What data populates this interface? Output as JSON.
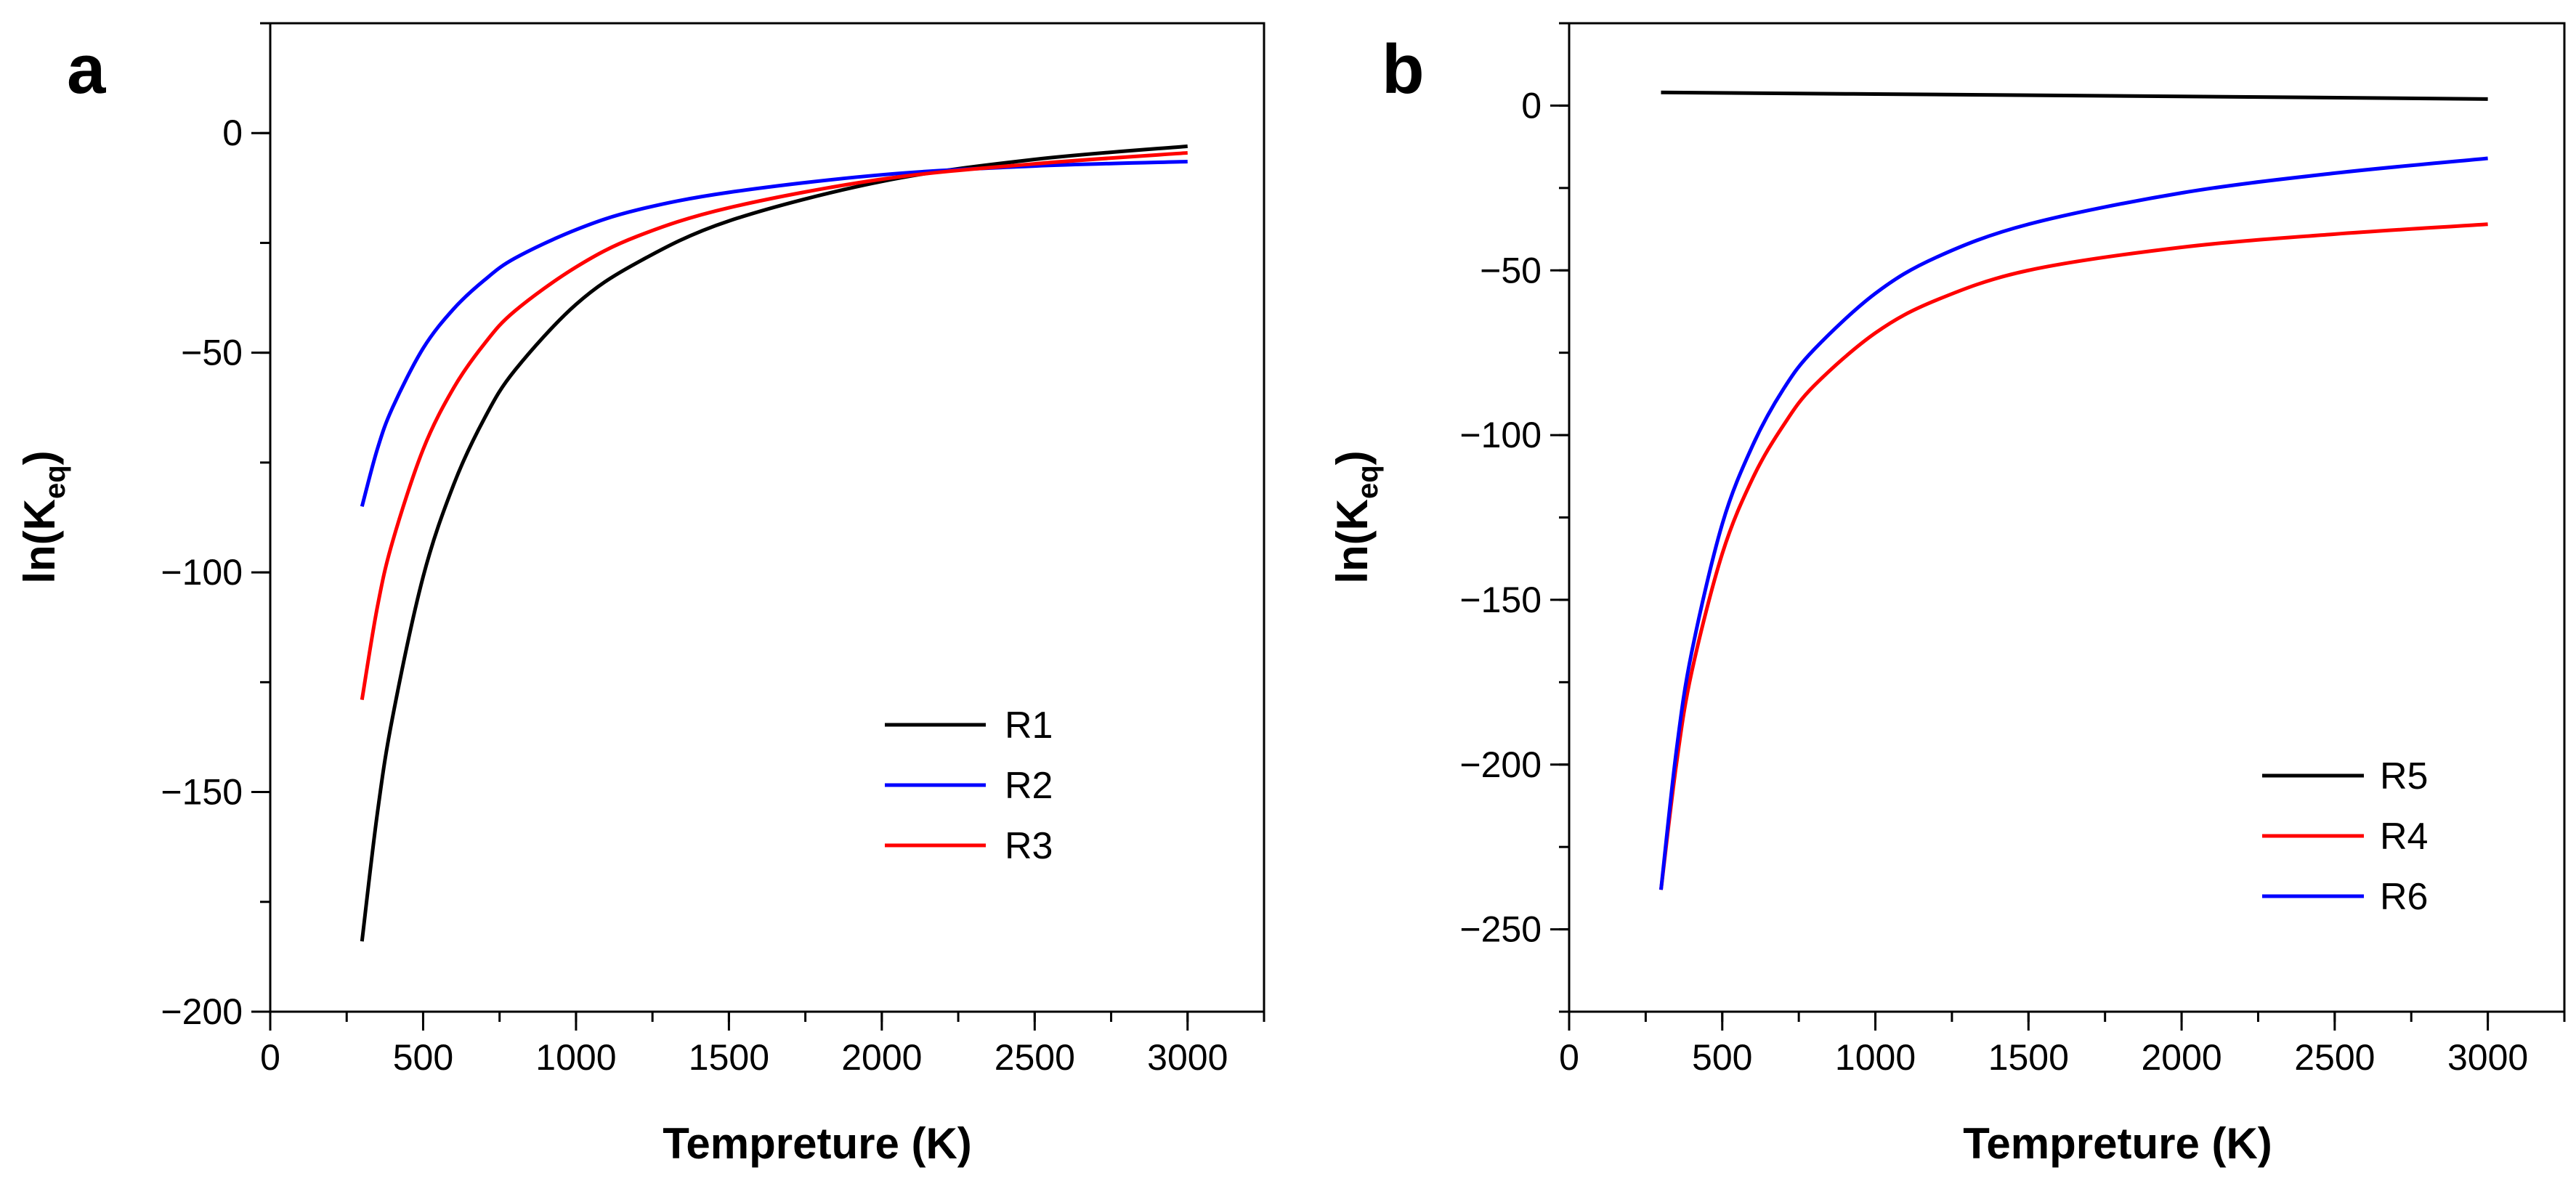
{
  "chart_data": [
    {
      "type": "line",
      "panel_label": "a",
      "xlabel": "Tempreture (K)",
      "ylabel": "ln(K",
      "ylabel_sub": "eq",
      "ylabel_close": ")",
      "xlim": [
        0,
        3250
      ],
      "ylim": [
        -200,
        25
      ],
      "xticks": [
        0,
        500,
        1000,
        1500,
        2000,
        2500,
        3000
      ],
      "xtick_labels": [
        "0",
        "500",
        "1000",
        "1500",
        "2000",
        "2500",
        "3000"
      ],
      "yticks": [
        0,
        -50,
        -100,
        -150,
        -200
      ],
      "ytick_labels": [
        "0",
        "−50",
        "−100",
        "−150",
        "−200"
      ],
      "x_minor_step": 250,
      "y_minor_step": 25,
      "grid": false,
      "legend_position": "lower-right",
      "series": [
        {
          "name": "R1",
          "color": "#000000",
          "x": [
            300,
            350,
            400,
            500,
            600,
            700,
            800,
            1000,
            1200,
            1500,
            2000,
            2500,
            3000
          ],
          "values": [
            -184,
            -155,
            -133,
            -101,
            -80,
            -65,
            -54,
            -39,
            -29.5,
            -20,
            -11,
            -6,
            -3
          ]
        },
        {
          "name": "R2",
          "color": "#0000ff",
          "x": [
            300,
            350,
            400,
            500,
            600,
            700,
            800,
            1000,
            1200,
            1500,
            2000,
            2500,
            3000
          ],
          "values": [
            -85,
            -72,
            -62.5,
            -49,
            -40,
            -33.5,
            -28.5,
            -22,
            -17.5,
            -13.5,
            -9.5,
            -7.5,
            -6.5
          ]
        },
        {
          "name": "R3",
          "color": "#ff0000",
          "x": [
            300,
            350,
            400,
            500,
            600,
            700,
            800,
            1000,
            1200,
            1500,
            2000,
            2500,
            3000
          ],
          "values": [
            -129,
            -108,
            -93,
            -72,
            -58,
            -48,
            -40.5,
            -30.5,
            -23.5,
            -17,
            -10.5,
            -7,
            -4.5
          ]
        }
      ]
    },
    {
      "type": "line",
      "panel_label": "b",
      "xlabel": "Tempreture (K)",
      "ylabel": "ln(K",
      "ylabel_sub": "eq",
      "ylabel_close": ")",
      "xlim": [
        0,
        3250
      ],
      "ylim": [
        -275,
        25
      ],
      "xticks": [
        0,
        500,
        1000,
        1500,
        2000,
        2500,
        3000
      ],
      "xtick_labels": [
        "0",
        "500",
        "1000",
        "1500",
        "2000",
        "2500",
        "3000"
      ],
      "yticks": [
        0,
        -50,
        -100,
        -150,
        -200,
        -250
      ],
      "ytick_labels": [
        "0",
        "−50",
        "−100",
        "−150",
        "−200",
        "−250"
      ],
      "x_minor_step": 250,
      "y_minor_step": 25,
      "grid": false,
      "legend_position": "lower-right",
      "series": [
        {
          "name": "R5",
          "color": "#000000",
          "x": [
            300,
            1000,
            2000,
            3000
          ],
          "values": [
            4,
            3.5,
            2.8,
            2
          ]
        },
        {
          "name": "R4",
          "color": "#ff0000",
          "x": [
            300,
            350,
            400,
            500,
            600,
            700,
            800,
            1000,
            1200,
            1500,
            2000,
            2500,
            3000
          ],
          "values": [
            -238,
            -200,
            -172,
            -136,
            -113,
            -97,
            -85,
            -69,
            -59,
            -50,
            -43,
            -39,
            -36
          ]
        },
        {
          "name": "R6",
          "color": "#0000ff",
          "x": [
            300,
            350,
            400,
            500,
            600,
            700,
            800,
            1000,
            1200,
            1500,
            2000,
            2500,
            3000
          ],
          "values": [
            -238,
            -196,
            -166,
            -127,
            -103,
            -86,
            -74,
            -57,
            -46,
            -36,
            -26.5,
            -20.5,
            -16
          ]
        }
      ]
    }
  ]
}
